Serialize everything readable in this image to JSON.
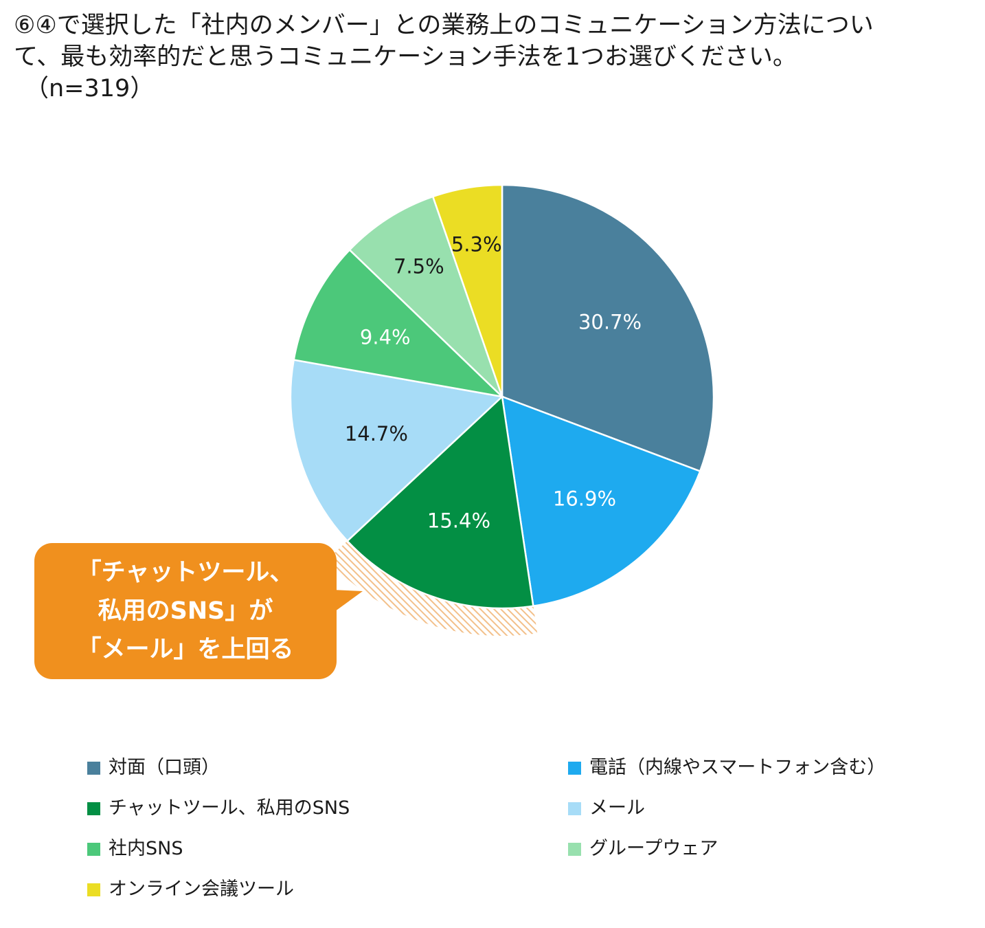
{
  "question": {
    "line1": "⑥④で選択した「社内のメンバー」との業務上のコミュニケーション方法につい",
    "line2": "て、最も効率的だと思うコミュニケーション手法を1つお選びください。",
    "n_label": "（n=319）"
  },
  "chart_data": {
    "type": "pie",
    "start_angle_deg": 0,
    "direction": "clockwise",
    "slices": [
      {
        "name": "対面（口頭）",
        "value": 30.7,
        "label": "30.7%",
        "color": "#4a809c",
        "label_color": "#ffffff"
      },
      {
        "name": "電話（内線やスマートフォン含む）",
        "value": 16.9,
        "label": "16.9%",
        "color": "#1eaaef",
        "label_color": "#ffffff"
      },
      {
        "name": "チャットツール、私用のSNS",
        "value": 15.4,
        "label": "15.4%",
        "color": "#038f44",
        "label_color": "#ffffff"
      },
      {
        "name": "メール",
        "value": 14.7,
        "label": "14.7%",
        "color": "#a7dcf7",
        "label_color": "#1a1a1a"
      },
      {
        "name": "社内SNS",
        "value": 9.4,
        "label": "9.4%",
        "color": "#4cc87a",
        "label_color": "#ffffff"
      },
      {
        "name": "グループウェア",
        "value": 7.5,
        "label": "7.5%",
        "color": "#98e0ae",
        "label_color": "#1a1a1a"
      },
      {
        "name": "オンライン会議ツール",
        "value": 5.3,
        "label": "5.3%",
        "color": "#ebdd24",
        "label_color": "#1a1a1a"
      }
    ],
    "legend_position": "bottom"
  },
  "callout": {
    "lines": [
      "「チャットツール、",
      "私用のSNS」が",
      "「メール」を上回る"
    ],
    "color": "#f0901e",
    "highlight_pattern_color": "#f3c08a"
  }
}
